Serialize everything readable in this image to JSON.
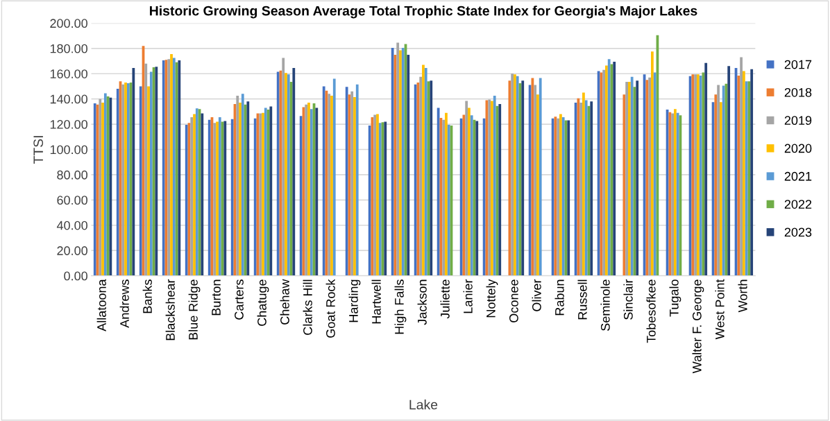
{
  "chart_data": {
    "type": "bar",
    "title": "Historic Growing Season Average Total Trophic State Index for Georgia's Major Lakes",
    "xlabel": "Lake",
    "ylabel": "TTSI",
    "categories": [
      "Allatoona",
      "Andrews",
      "Banks",
      "Blackshear",
      "Blue Ridge",
      "Burton",
      "Carters",
      "Chatuge",
      "Chehaw",
      "Clarks Hill",
      "Goat Rock",
      "Harding",
      "Hartwell",
      "High Falls",
      "Jackson",
      "Juliette",
      "Lanier",
      "Nottely",
      "Oconee",
      "Oliver",
      "Rabun",
      "Russell",
      "Seminole",
      "Sinclair",
      "Tobesofkee",
      "Tugalo",
      "Walter F. George",
      "West Point",
      "Worth"
    ],
    "series": [
      {
        "name": "2017",
        "color": "#4472c4",
        "values": [
          136.5,
          148,
          150,
          170.5,
          119.5,
          123.5,
          124,
          124.5,
          161.5,
          126.5,
          150,
          149.5,
          119,
          180.5,
          151.5,
          133,
          124.5,
          124.5,
          null,
          151,
          124.5,
          137,
          162,
          null,
          159.5,
          131.5,
          158,
          137.5,
          164.5
        ]
      },
      {
        "name": "2018",
        "color": "#ed7d31",
        "values": [
          135.5,
          154,
          182,
          171,
          121,
          125.5,
          136,
          128.5,
          162.5,
          133.5,
          146.5,
          143.5,
          125.5,
          175,
          153,
          125,
          127.5,
          139,
          154.5,
          156.5,
          126,
          140.5,
          161,
          143.5,
          155,
          129.5,
          159.5,
          143.5,
          158.5
        ]
      },
      {
        "name": "2019",
        "color": "#a5a5a5",
        "values": [
          140,
          151.5,
          168,
          171.5,
          125.5,
          121,
          142.5,
          128.5,
          172.5,
          135.5,
          144,
          146,
          127.5,
          184.5,
          157.5,
          123.5,
          138.5,
          139.5,
          160,
          151,
          124.5,
          137,
          163,
          153.5,
          157,
          128.5,
          159.5,
          151,
          173
        ]
      },
      {
        "name": "2020",
        "color": "#ffc000",
        "values": [
          137,
          153,
          150,
          175.5,
          128,
          122,
          137,
          129,
          160.5,
          137,
          142.5,
          141.5,
          128,
          178.5,
          167,
          129,
          133,
          138.5,
          159.5,
          143.5,
          128,
          145,
          166.5,
          153.5,
          177.5,
          132,
          159.5,
          137.5,
          162
        ]
      },
      {
        "name": "2021",
        "color": "#5b9bd5",
        "values": [
          144.5,
          152.5,
          161.5,
          172.5,
          132.5,
          125.5,
          144,
          133,
          159.5,
          132,
          156,
          151.5,
          121,
          180.5,
          164.5,
          119.5,
          127,
          142.5,
          158,
          156.5,
          125.5,
          139,
          171.5,
          157.5,
          161,
          129,
          158.5,
          150.5,
          154
        ]
      },
      {
        "name": "2022",
        "color": "#70ad47",
        "values": [
          142,
          153,
          165,
          169,
          132,
          122,
          135.5,
          131.5,
          153.5,
          136.5,
          null,
          null,
          121.5,
          183.5,
          154,
          119,
          123.5,
          134.5,
          152.5,
          null,
          123,
          134.5,
          167.5,
          149.5,
          190.5,
          127,
          161,
          152,
          154
        ]
      },
      {
        "name": "2023",
        "color": "#264478",
        "values": [
          141,
          164.5,
          165.5,
          170.5,
          128.5,
          122.5,
          138,
          134,
          164.5,
          133,
          null,
          null,
          122,
          175,
          154.5,
          null,
          122.5,
          136,
          154.5,
          null,
          123,
          138,
          169.5,
          154.5,
          null,
          null,
          168.5,
          166,
          163.5
        ]
      }
    ],
    "ylim": [
      0,
      200
    ],
    "yticks": [
      {
        "value": 0,
        "label": "0.00"
      },
      {
        "value": 20,
        "label": "20.00"
      },
      {
        "value": 40,
        "label": "40.00"
      },
      {
        "value": 60,
        "label": "60.00"
      },
      {
        "value": 80,
        "label": "80.00"
      },
      {
        "value": 100,
        "label": "100.00"
      },
      {
        "value": 120,
        "label": "120.00"
      },
      {
        "value": 140,
        "label": "140.00"
      },
      {
        "value": 160,
        "label": "160.00"
      },
      {
        "value": 180,
        "label": "180.00"
      },
      {
        "value": 200,
        "label": "200.00"
      }
    ],
    "grid": "y",
    "legend": "right"
  }
}
